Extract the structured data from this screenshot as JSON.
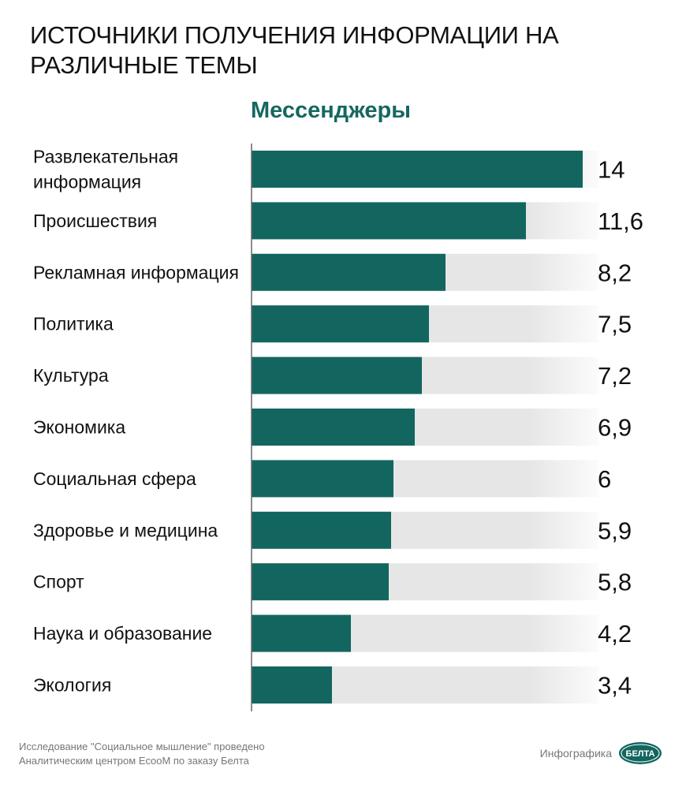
{
  "header": {
    "title": "ИСТОЧНИКИ ПОЛУЧЕНИЯ ИНФОРМАЦИИ НА РАЗЛИЧНЫЕ ТЕМЫ",
    "subtitle": "Мессенджеры"
  },
  "footer": {
    "source_line1": "Исследование \"Социальное мышление\" проведено",
    "source_line2": "Аналитическим центром EcooM по заказу Белта",
    "credit": "Инфографика",
    "logo_text": "БЕЛТА"
  },
  "colors": {
    "bar": "#136660",
    "track": "#e6e6e6",
    "subtitle": "#166860"
  },
  "chart_data": {
    "type": "bar",
    "orientation": "horizontal",
    "title": "ИСТОЧНИКИ ПОЛУЧЕНИЯ ИНФОРМАЦИИ НА РАЗЛИЧНЫЕ ТЕМЫ",
    "subtitle": "Мессенджеры",
    "categories": [
      "Развлекательная информация",
      "Происшествия",
      "Рекламная информация",
      "Политика",
      "Культура",
      "Экономика",
      "Социальная сфера",
      "Здоровье и медицина",
      "Спорт",
      "Наука и образование",
      "Экология"
    ],
    "category_lines": [
      [
        "Развлекательная",
        "информация"
      ],
      [
        "Происшествия"
      ],
      [
        "Рекламная информация"
      ],
      [
        "Политика"
      ],
      [
        "Культура"
      ],
      [
        "Экономика"
      ],
      [
        "Социальная сфера"
      ],
      [
        "Здоровье и медицина"
      ],
      [
        "Спорт"
      ],
      [
        "Наука и образование"
      ],
      [
        "Экология"
      ]
    ],
    "values": [
      14,
      11.6,
      8.2,
      7.5,
      7.2,
      6.9,
      6,
      5.9,
      5.8,
      4.2,
      3.4
    ],
    "value_labels": [
      "14",
      "11,6",
      "8,2",
      "7,5",
      "7,2",
      "6,9",
      "6",
      "5,9",
      "5,8",
      "4,2",
      "3,4"
    ],
    "xlim": [
      0,
      14
    ],
    "grid": false,
    "legend": "none"
  }
}
